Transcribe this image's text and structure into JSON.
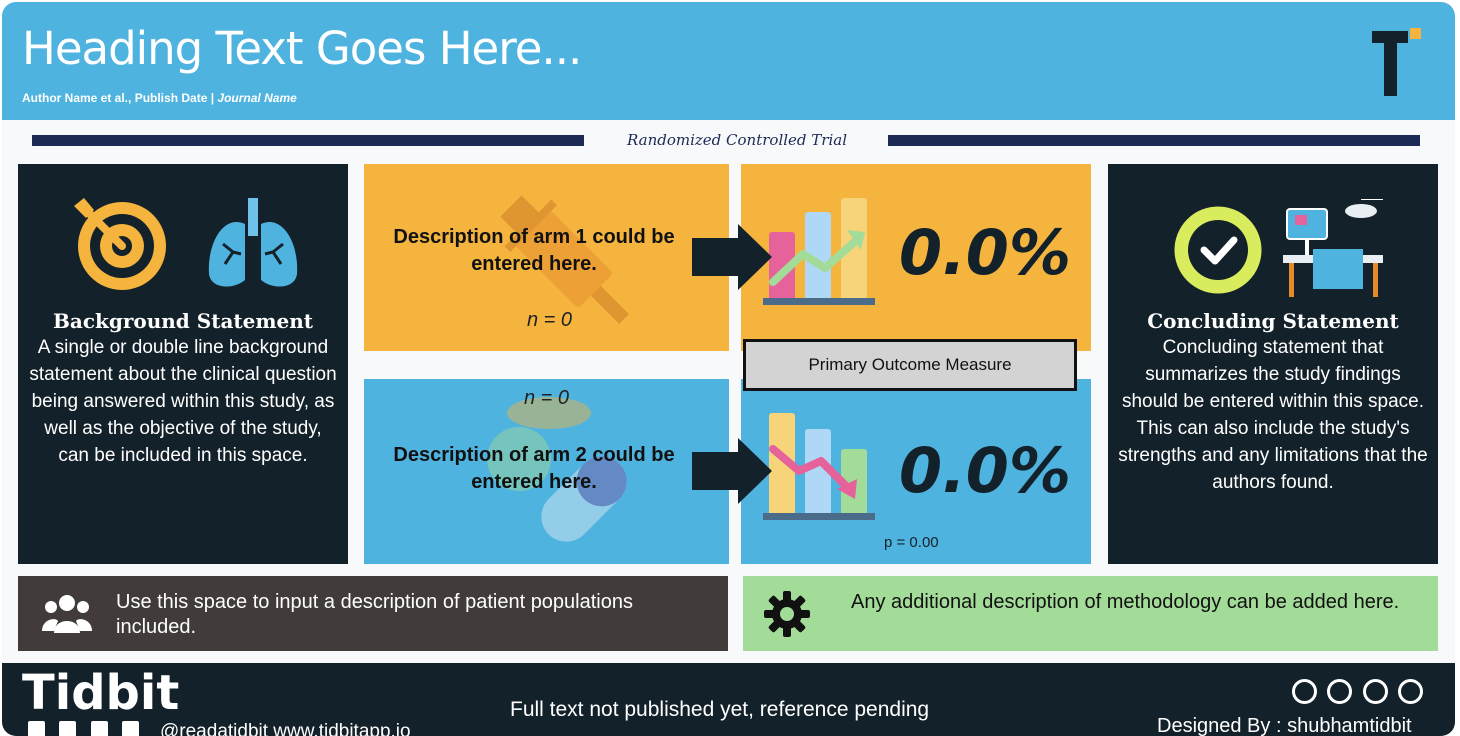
{
  "header": {
    "title": "Heading Text Goes Here...",
    "authors": "Author Name et al., Publish Date",
    "separator": "|",
    "journal": "Journal Name",
    "logo_icon": "tidbit-t-logo-icon"
  },
  "study_type": "Randomized Controlled Trial",
  "background": {
    "title": "Background Statement",
    "body": "A single or double line background statement about the clinical question being answered within this study, as well as the objective of the study, can be included in this space.",
    "icons": [
      "target-icon",
      "lungs-icon"
    ]
  },
  "arm1": {
    "description": "Description of arm 1 could be entered here.",
    "n": "n = 0",
    "icon": "syringe-icon"
  },
  "arm2": {
    "description": "Description of arm 2 could be entered here.",
    "n": "n = 0",
    "icon": "pills-icon"
  },
  "outcomes": {
    "label": "Primary Outcome Measure",
    "arm1_value": "0.0%",
    "arm2_value": "0.0%",
    "p_value": "p = 0.00",
    "icons": [
      "chart-up-icon",
      "chart-down-icon"
    ]
  },
  "conclusion": {
    "title": "Concluding Statement",
    "body": "Concluding statement that summarizes the study findings should be entered within this space. This can also include the study's strengths and any limitations that the authors found.",
    "icons": [
      "checkmark-icon",
      "patient-monitor-icon"
    ]
  },
  "population": {
    "text": "Use this space to input a description of patient populations included.",
    "icon": "users-icon"
  },
  "methodology": {
    "text": "Any additional description of methodology can be added here.",
    "icon": "gear-icon"
  },
  "footer": {
    "brand": "Tidbit",
    "handle": "@readatidbit  www.tidbitapp.io",
    "reference": "Full text not published yet, reference pending",
    "license_icons": [
      "cc-icon",
      "by-icon",
      "sa-icon",
      "nc-icon"
    ],
    "designed_by": "Designed By : shubhamtidbit"
  },
  "colors": {
    "blue": "#4fb3df",
    "orange": "#f4b43e",
    "dark": "#13212a",
    "green": "#a3dc98",
    "gray": "#413c3a",
    "navy": "#1d2a55"
  }
}
